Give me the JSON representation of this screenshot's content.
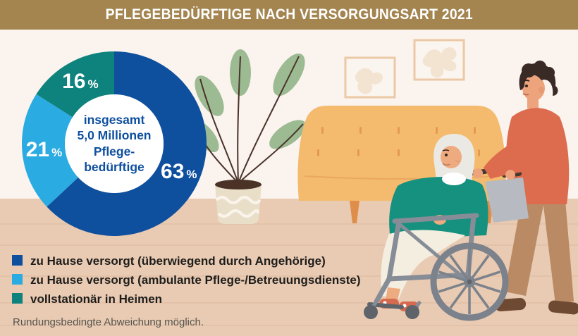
{
  "header": {
    "title": "PFLEGEBEDÜRFTIGE NACH VERSORGUNGSART 2021"
  },
  "theme": {
    "header_bg": "#a48550",
    "wall": "#faf3ee",
    "floor": "#e9cab2",
    "accent_dark_blue": "#0e4f9e",
    "accent_light_blue": "#2aabe2",
    "accent_teal": "#0e827d"
  },
  "chart_data": {
    "type": "pie",
    "subtype": "donut",
    "title": "Pflegebedürftige nach Versorgungsart 2021",
    "unit": "%",
    "categories": [
      "zu Hause versorgt (überwiegend durch Angehörige)",
      "zu Hause versorgt (ambulante Pflege-/Betreuungsdienste)",
      "vollstationär in Heimen"
    ],
    "values": [
      63,
      21,
      16
    ],
    "colors": [
      "#0e4f9e",
      "#2aabe2",
      "#0e827d"
    ],
    "slice_labels": [
      "63 %",
      "21 %",
      "16 %"
    ],
    "center_label": {
      "lines": [
        "insgesamt",
        "5,0 Millionen",
        "Pflege-",
        "bedürftige"
      ]
    },
    "total_label": "insgesamt 5,0 Millionen Pflegebedürftige",
    "start_angle_deg": 0,
    "direction": "clockwise",
    "legend_position": "bottom-left"
  },
  "legend": {
    "items": [
      {
        "label": "zu Hause versorgt (überwiegend durch Angehörige)",
        "color": "#0e4f9e"
      },
      {
        "label": "zu Hause versorgt (ambulante Pflege-/Betreuungsdienste)",
        "color": "#2aabe2"
      },
      {
        "label": "vollstationär in Heimen",
        "color": "#0e827d"
      }
    ]
  },
  "footnote": "Rundungsbedingte Abweichung möglich.",
  "scene": {
    "elements": [
      "picture-frames",
      "houseplant",
      "sofa",
      "elderly-woman-in-wheelchair",
      "caregiver-pushing-wheelchair"
    ]
  }
}
